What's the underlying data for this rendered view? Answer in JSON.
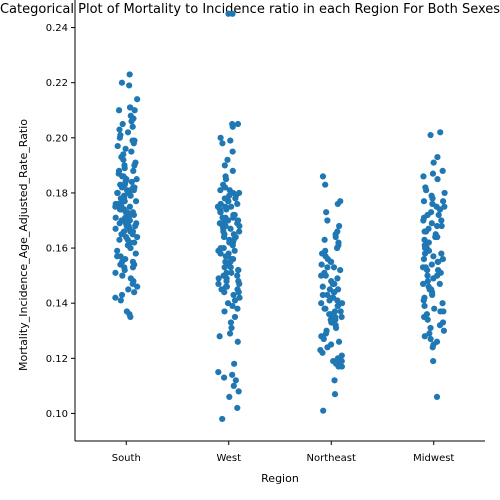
{
  "chart_data": {
    "type": "scatter",
    "title": "Categorical Plot of Mortality to Incidence ratio in each Region For Both Sexes",
    "xlabel": "Region",
    "ylabel": "Mortality_Incidence_Age_Adjusted_Rate_Ratio",
    "categories": [
      "South",
      "West",
      "Northeast",
      "Midwest"
    ],
    "ylim": [
      0.09,
      0.25
    ],
    "yticks": [
      0.1,
      0.12,
      0.14,
      0.16,
      0.18,
      0.2,
      0.22,
      0.24
    ],
    "ytick_labels": [
      "0.10",
      "0.12",
      "0.14",
      "0.16",
      "0.18",
      "0.20",
      "0.22",
      "0.24"
    ],
    "grid": false,
    "point_color": "#1f77b4",
    "series": [
      {
        "values": [
          0.223,
          0.22,
          0.219,
          0.214,
          0.211,
          0.211,
          0.21,
          0.21,
          0.208,
          0.207,
          0.206,
          0.205,
          0.204,
          0.203,
          0.202,
          0.201,
          0.2,
          0.199,
          0.199,
          0.198,
          0.197,
          0.196,
          0.195,
          0.194,
          0.193,
          0.192,
          0.191,
          0.19,
          0.19,
          0.189,
          0.188,
          0.188,
          0.187,
          0.186,
          0.186,
          0.185,
          0.185,
          0.184,
          0.184,
          0.183,
          0.183,
          0.182,
          0.182,
          0.182,
          0.181,
          0.181,
          0.181,
          0.18,
          0.18,
          0.18,
          0.179,
          0.179,
          0.179,
          0.178,
          0.178,
          0.178,
          0.177,
          0.177,
          0.177,
          0.176,
          0.176,
          0.176,
          0.175,
          0.175,
          0.175,
          0.174,
          0.174,
          0.174,
          0.173,
          0.173,
          0.173,
          0.172,
          0.172,
          0.172,
          0.171,
          0.171,
          0.171,
          0.17,
          0.17,
          0.17,
          0.169,
          0.169,
          0.169,
          0.168,
          0.168,
          0.168,
          0.167,
          0.167,
          0.167,
          0.166,
          0.166,
          0.166,
          0.165,
          0.165,
          0.164,
          0.164,
          0.163,
          0.163,
          0.162,
          0.162,
          0.161,
          0.16,
          0.159,
          0.158,
          0.157,
          0.157,
          0.156,
          0.155,
          0.155,
          0.154,
          0.154,
          0.153,
          0.153,
          0.152,
          0.151,
          0.15,
          0.149,
          0.148,
          0.147,
          0.146,
          0.145,
          0.144,
          0.143,
          0.142,
          0.141,
          0.137,
          0.136,
          0.135
        ]
      },
      {
        "values": [
          0.245,
          0.245,
          0.205,
          0.205,
          0.204,
          0.2,
          0.199,
          0.198,
          0.195,
          0.192,
          0.19,
          0.188,
          0.186,
          0.185,
          0.183,
          0.182,
          0.181,
          0.181,
          0.18,
          0.18,
          0.179,
          0.179,
          0.178,
          0.178,
          0.177,
          0.177,
          0.176,
          0.176,
          0.175,
          0.175,
          0.175,
          0.174,
          0.174,
          0.173,
          0.173,
          0.173,
          0.172,
          0.172,
          0.171,
          0.171,
          0.171,
          0.17,
          0.17,
          0.17,
          0.169,
          0.169,
          0.168,
          0.168,
          0.168,
          0.167,
          0.167,
          0.166,
          0.166,
          0.165,
          0.165,
          0.164,
          0.164,
          0.163,
          0.163,
          0.162,
          0.162,
          0.161,
          0.16,
          0.16,
          0.159,
          0.159,
          0.158,
          0.158,
          0.157,
          0.157,
          0.156,
          0.156,
          0.155,
          0.155,
          0.154,
          0.154,
          0.153,
          0.153,
          0.152,
          0.152,
          0.151,
          0.151,
          0.15,
          0.15,
          0.149,
          0.149,
          0.148,
          0.148,
          0.147,
          0.147,
          0.146,
          0.146,
          0.145,
          0.145,
          0.144,
          0.144,
          0.143,
          0.142,
          0.141,
          0.14,
          0.139,
          0.138,
          0.137,
          0.135,
          0.133,
          0.131,
          0.129,
          0.128,
          0.126,
          0.118,
          0.115,
          0.114,
          0.113,
          0.112,
          0.11,
          0.108,
          0.106,
          0.102,
          0.098
        ]
      },
      {
        "values": [
          0.186,
          0.183,
          0.177,
          0.176,
          0.173,
          0.17,
          0.168,
          0.166,
          0.165,
          0.164,
          0.163,
          0.162,
          0.161,
          0.16,
          0.159,
          0.158,
          0.158,
          0.157,
          0.156,
          0.155,
          0.155,
          0.154,
          0.153,
          0.153,
          0.152,
          0.151,
          0.15,
          0.15,
          0.149,
          0.148,
          0.147,
          0.147,
          0.146,
          0.145,
          0.145,
          0.144,
          0.144,
          0.143,
          0.143,
          0.142,
          0.142,
          0.141,
          0.141,
          0.14,
          0.14,
          0.139,
          0.139,
          0.138,
          0.138,
          0.137,
          0.137,
          0.136,
          0.136,
          0.135,
          0.135,
          0.134,
          0.134,
          0.133,
          0.133,
          0.132,
          0.131,
          0.13,
          0.129,
          0.128,
          0.127,
          0.126,
          0.125,
          0.124,
          0.123,
          0.122,
          0.121,
          0.12,
          0.119,
          0.119,
          0.118,
          0.118,
          0.117,
          0.117,
          0.112,
          0.107,
          0.101
        ]
      },
      {
        "values": [
          0.202,
          0.201,
          0.193,
          0.191,
          0.188,
          0.187,
          0.186,
          0.185,
          0.182,
          0.181,
          0.18,
          0.179,
          0.178,
          0.177,
          0.177,
          0.176,
          0.175,
          0.175,
          0.174,
          0.174,
          0.173,
          0.172,
          0.172,
          0.171,
          0.17,
          0.17,
          0.169,
          0.168,
          0.168,
          0.167,
          0.166,
          0.166,
          0.165,
          0.164,
          0.164,
          0.163,
          0.162,
          0.162,
          0.161,
          0.16,
          0.16,
          0.159,
          0.158,
          0.158,
          0.157,
          0.156,
          0.156,
          0.155,
          0.155,
          0.154,
          0.153,
          0.153,
          0.152,
          0.152,
          0.151,
          0.15,
          0.15,
          0.149,
          0.148,
          0.147,
          0.147,
          0.146,
          0.145,
          0.145,
          0.144,
          0.143,
          0.142,
          0.141,
          0.14,
          0.139,
          0.138,
          0.137,
          0.137,
          0.136,
          0.135,
          0.134,
          0.133,
          0.132,
          0.131,
          0.13,
          0.129,
          0.128,
          0.127,
          0.126,
          0.125,
          0.124,
          0.119,
          0.106
        ]
      }
    ]
  }
}
